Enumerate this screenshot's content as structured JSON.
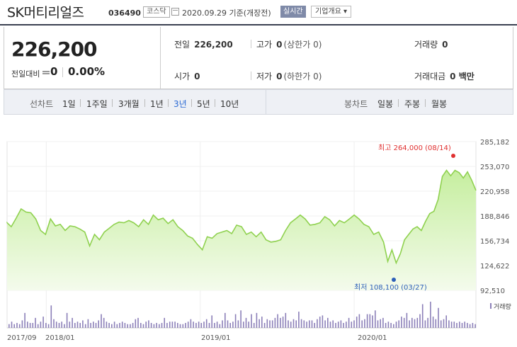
{
  "header": {
    "company_name": "SK머티리얼즈",
    "stock_code": "036490",
    "market_badge": "코스닥",
    "date_text": "2020.09.29  기준(개장전)",
    "live_badge": "실시간",
    "company_info_button": "기업개요 ▾"
  },
  "quote": {
    "current_price": "226,200",
    "change_label": "전일대비",
    "change_value": "0",
    "change_percent": "0.00%",
    "prev_close_label": "전일",
    "prev_close": "226,200",
    "high_label": "고가",
    "high": "0",
    "upper_limit": "(상한가 0)",
    "volume_label": "거래량",
    "volume": "0",
    "open_label": "시가",
    "open": "0",
    "low_label": "저가",
    "low": "0",
    "lower_limit": "(하한가 0)",
    "amount_label": "거래대금",
    "amount": "0 백만"
  },
  "periods": {
    "label": "선차트",
    "items": [
      "1일",
      "1주일",
      "3개월",
      "1년",
      "3년",
      "5년",
      "10년"
    ],
    "active": "3년"
  },
  "candle_periods": {
    "label": "봉차트",
    "items": [
      "일봉",
      "주봉",
      "월봉"
    ]
  },
  "chart_data": {
    "type": "area",
    "y_ticks": [
      "285,182",
      "253,070",
      "220,958",
      "188,846",
      "156,734",
      "124,622",
      "92,510"
    ],
    "ylim": [
      92510,
      285182
    ],
    "x_ticks": [
      "2017/09",
      "2018/01",
      "2019/01",
      "2020/01"
    ],
    "high_annotation": "최고 264,000 (08/14)",
    "low_annotation": "최저 108,100 (03/27)",
    "volume_label": "거래량",
    "series_color": "#8fd14f",
    "high_color": "#e03131",
    "low_color": "#2c5fb8",
    "price_series": [
      [
        0,
        180000
      ],
      [
        6,
        175000
      ],
      [
        13,
        186000
      ],
      [
        20,
        198000
      ],
      [
        27,
        194000
      ],
      [
        34,
        193000
      ],
      [
        41,
        185000
      ],
      [
        48,
        170000
      ],
      [
        55,
        165000
      ],
      [
        62,
        185000
      ],
      [
        69,
        176000
      ],
      [
        76,
        178000
      ],
      [
        83,
        170000
      ],
      [
        90,
        176000
      ],
      [
        97,
        175000
      ],
      [
        104,
        172000
      ],
      [
        111,
        168000
      ],
      [
        118,
        150000
      ],
      [
        125,
        165000
      ],
      [
        132,
        158000
      ],
      [
        139,
        168000
      ],
      [
        146,
        173000
      ],
      [
        153,
        178000
      ],
      [
        160,
        181000
      ],
      [
        167,
        180000
      ],
      [
        174,
        183000
      ],
      [
        181,
        180000
      ],
      [
        188,
        175000
      ],
      [
        195,
        184000
      ],
      [
        202,
        178000
      ],
      [
        209,
        190000
      ],
      [
        216,
        184000
      ],
      [
        223,
        186000
      ],
      [
        230,
        179000
      ],
      [
        237,
        184000
      ],
      [
        244,
        175000
      ],
      [
        251,
        170000
      ],
      [
        258,
        163000
      ],
      [
        265,
        160000
      ],
      [
        272,
        152000
      ],
      [
        279,
        145000
      ],
      [
        286,
        162000
      ],
      [
        293,
        160000
      ],
      [
        300,
        166000
      ],
      [
        307,
        168000
      ],
      [
        314,
        170000
      ],
      [
        321,
        166000
      ],
      [
        328,
        177000
      ],
      [
        335,
        175000
      ],
      [
        342,
        165000
      ],
      [
        349,
        168000
      ],
      [
        356,
        162000
      ],
      [
        363,
        168000
      ],
      [
        370,
        158000
      ],
      [
        377,
        155000
      ],
      [
        384,
        156000
      ],
      [
        391,
        158000
      ],
      [
        398,
        170000
      ],
      [
        405,
        180000
      ],
      [
        412,
        185000
      ],
      [
        419,
        190000
      ],
      [
        426,
        185000
      ],
      [
        433,
        177000
      ],
      [
        440,
        178000
      ],
      [
        447,
        180000
      ],
      [
        454,
        188000
      ],
      [
        461,
        184000
      ],
      [
        468,
        176000
      ],
      [
        475,
        183000
      ],
      [
        482,
        180000
      ],
      [
        489,
        185000
      ],
      [
        496,
        190000
      ],
      [
        503,
        185000
      ],
      [
        510,
        178000
      ],
      [
        517,
        175000
      ],
      [
        524,
        165000
      ],
      [
        531,
        168000
      ],
      [
        538,
        155000
      ],
      [
        544,
        130000
      ],
      [
        550,
        145000
      ],
      [
        556,
        128000
      ],
      [
        562,
        140000
      ],
      [
        568,
        158000
      ],
      [
        574,
        165000
      ],
      [
        580,
        172000
      ],
      [
        586,
        175000
      ],
      [
        592,
        170000
      ],
      [
        598,
        182000
      ],
      [
        604,
        192000
      ],
      [
        610,
        195000
      ],
      [
        616,
        210000
      ],
      [
        622,
        240000
      ],
      [
        628,
        248000
      ],
      [
        634,
        241000
      ],
      [
        640,
        248000
      ],
      [
        646,
        245000
      ],
      [
        652,
        238000
      ],
      [
        658,
        246000
      ],
      [
        664,
        235000
      ],
      [
        670,
        222000
      ]
    ],
    "volume_series": [
      3,
      5,
      3,
      4,
      3,
      6,
      12,
      5,
      4,
      4,
      8,
      3,
      5,
      9,
      4,
      3,
      18,
      7,
      5,
      4,
      5,
      3,
      12,
      5,
      8,
      4,
      5,
      4,
      6,
      3,
      7,
      4,
      5,
      4,
      6,
      11,
      8,
      5,
      4,
      3,
      5,
      3,
      4,
      5,
      4,
      3,
      3,
      4,
      7,
      8,
      4,
      3,
      5,
      6,
      4,
      3,
      4,
      3,
      4,
      8,
      4,
      5,
      5,
      5,
      4,
      3,
      3,
      4,
      5,
      7,
      5,
      4,
      5,
      4,
      5,
      7,
      4,
      10,
      4,
      5,
      3,
      6,
      12,
      6,
      4,
      5,
      11,
      6,
      14,
      5,
      8,
      5,
      11,
      4,
      12,
      7,
      9,
      4,
      7,
      6,
      6,
      8,
      11,
      8,
      9,
      12,
      6,
      5,
      7,
      6,
      13,
      7,
      6,
      5,
      6,
      6,
      4,
      7,
      9,
      10,
      6,
      8,
      5,
      6,
      4,
      5,
      6,
      4,
      5,
      8,
      5,
      6,
      9,
      11,
      6,
      7,
      11,
      11,
      10,
      14,
      6,
      7,
      8,
      4,
      5,
      4,
      3,
      5,
      6,
      9,
      8,
      12,
      6,
      8,
      7,
      8,
      11,
      19,
      6,
      8,
      21,
      9,
      7,
      16,
      6,
      7,
      10,
      6,
      5,
      5,
      4,
      5,
      4,
      5,
      4,
      3,
      4,
      3
    ]
  }
}
